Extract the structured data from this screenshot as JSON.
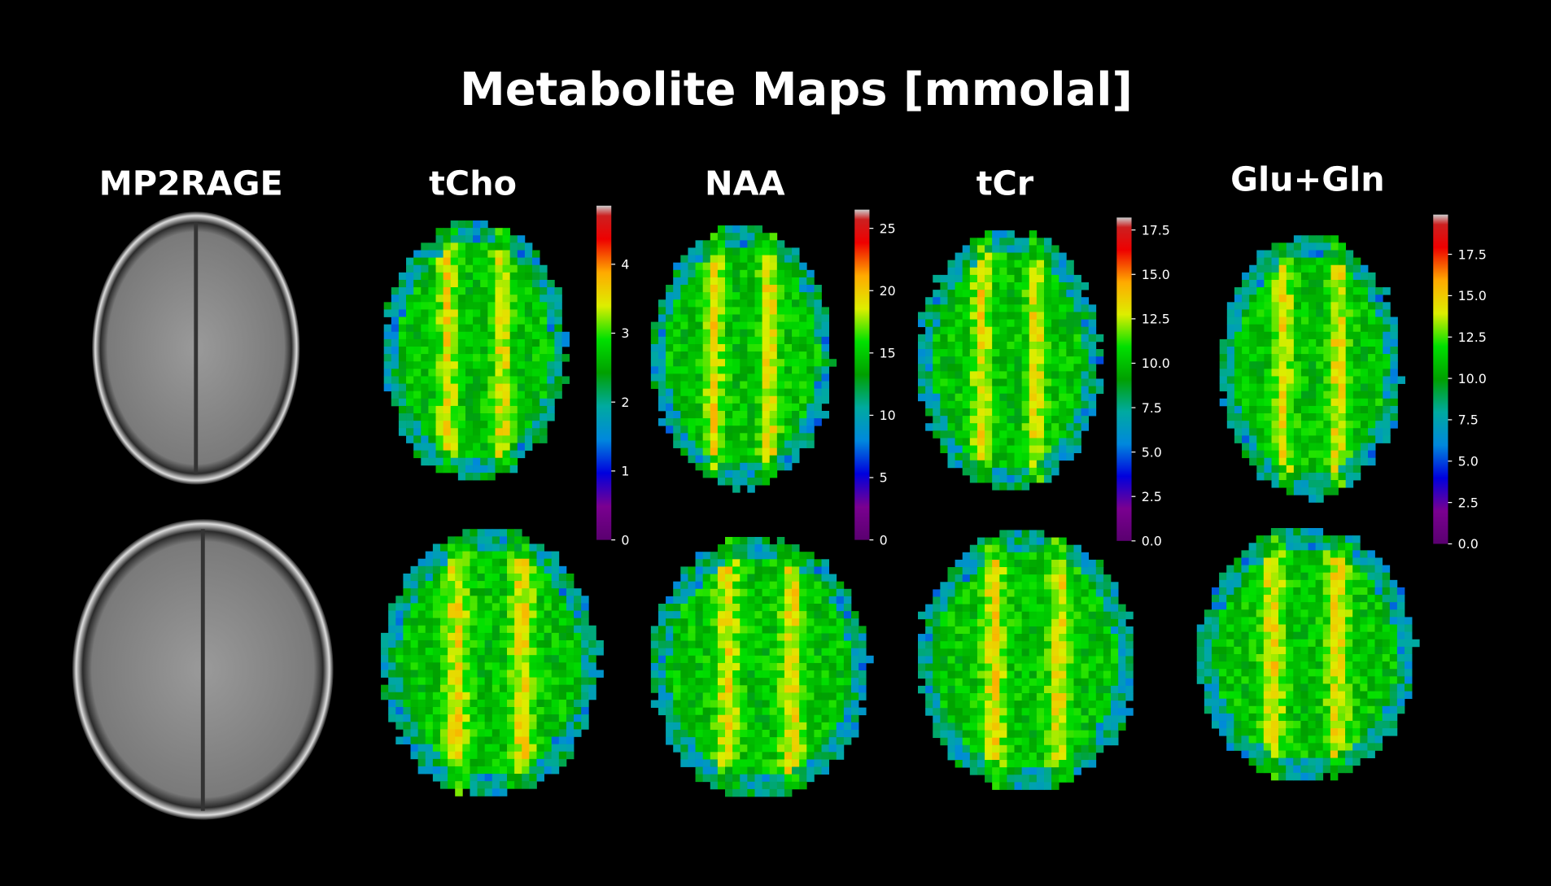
{
  "title": "Metabolite Maps [mmolal]",
  "panels": [
    {
      "label": "MP2RAGE"
    },
    {
      "label": "tCho",
      "colorbar": {
        "lim": [
          0,
          4.85
        ],
        "ticks": [
          0,
          1,
          2,
          3,
          4
        ]
      }
    },
    {
      "label": "NAA",
      "colorbar": {
        "lim": [
          0,
          26.5
        ],
        "ticks": [
          0,
          5,
          10,
          15,
          20,
          25
        ]
      }
    },
    {
      "label": "tCr",
      "colorbar": {
        "lim": [
          0,
          18.2
        ],
        "ticks": [
          {
            "value": 0,
            "label": "0.0"
          },
          {
            "value": 2.5,
            "label": "2.5"
          },
          {
            "value": 5,
            "label": "5.0"
          },
          {
            "value": 7.5,
            "label": "7.5"
          },
          {
            "value": 10,
            "label": "10.0"
          },
          {
            "value": 12.5,
            "label": "12.5"
          },
          {
            "value": 15,
            "label": "15.0"
          },
          {
            "value": 17.5,
            "label": "17.5"
          }
        ]
      }
    },
    {
      "label": "Glu+Gln",
      "colorbar": {
        "lim": [
          0,
          19.9
        ],
        "ticks": [
          {
            "value": 0,
            "label": "0.0"
          },
          {
            "value": 2.5,
            "label": "2.5"
          },
          {
            "value": 5,
            "label": "5.0"
          },
          {
            "value": 7.5,
            "label": "7.5"
          },
          {
            "value": 10,
            "label": "10.0"
          },
          {
            "value": 12.5,
            "label": "12.5"
          },
          {
            "value": 15,
            "label": "15.0"
          },
          {
            "value": 17.5,
            "label": "17.5"
          }
        ]
      }
    }
  ]
}
